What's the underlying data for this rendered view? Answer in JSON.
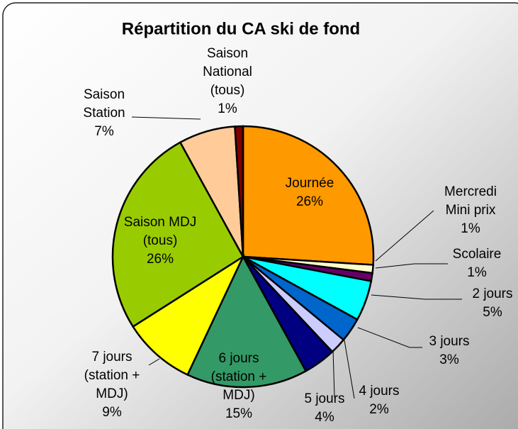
{
  "chart_data": {
    "type": "pie",
    "title": "Répartition du CA ski de fond",
    "categories": [
      "Journée",
      "Mercredi Mini prix",
      "Scolaire",
      "2 jours",
      "3 jours",
      "4 jours",
      "5 jours",
      "6 jours (station + MDJ)",
      "7 jours (station + MDJ)",
      "Saison MDJ (tous)",
      "Saison Station",
      "Saison National (tous)"
    ],
    "values": [
      26,
      1,
      1,
      5,
      3,
      2,
      4,
      15,
      9,
      26,
      7,
      1
    ],
    "value_labels": [
      "26%",
      "1%",
      "1%",
      "5%",
      "3%",
      "2%",
      "4%",
      "15%",
      "9%",
      "26%",
      "7%",
      "1%"
    ],
    "colors": [
      "#FF9900",
      "#FFFFCC",
      "#660066",
      "#00FFFF",
      "#0066CC",
      "#CCCCFF",
      "#000080",
      "#339966",
      "#FFFF00",
      "#99CC00",
      "#FFCC99",
      "#800000"
    ]
  }
}
